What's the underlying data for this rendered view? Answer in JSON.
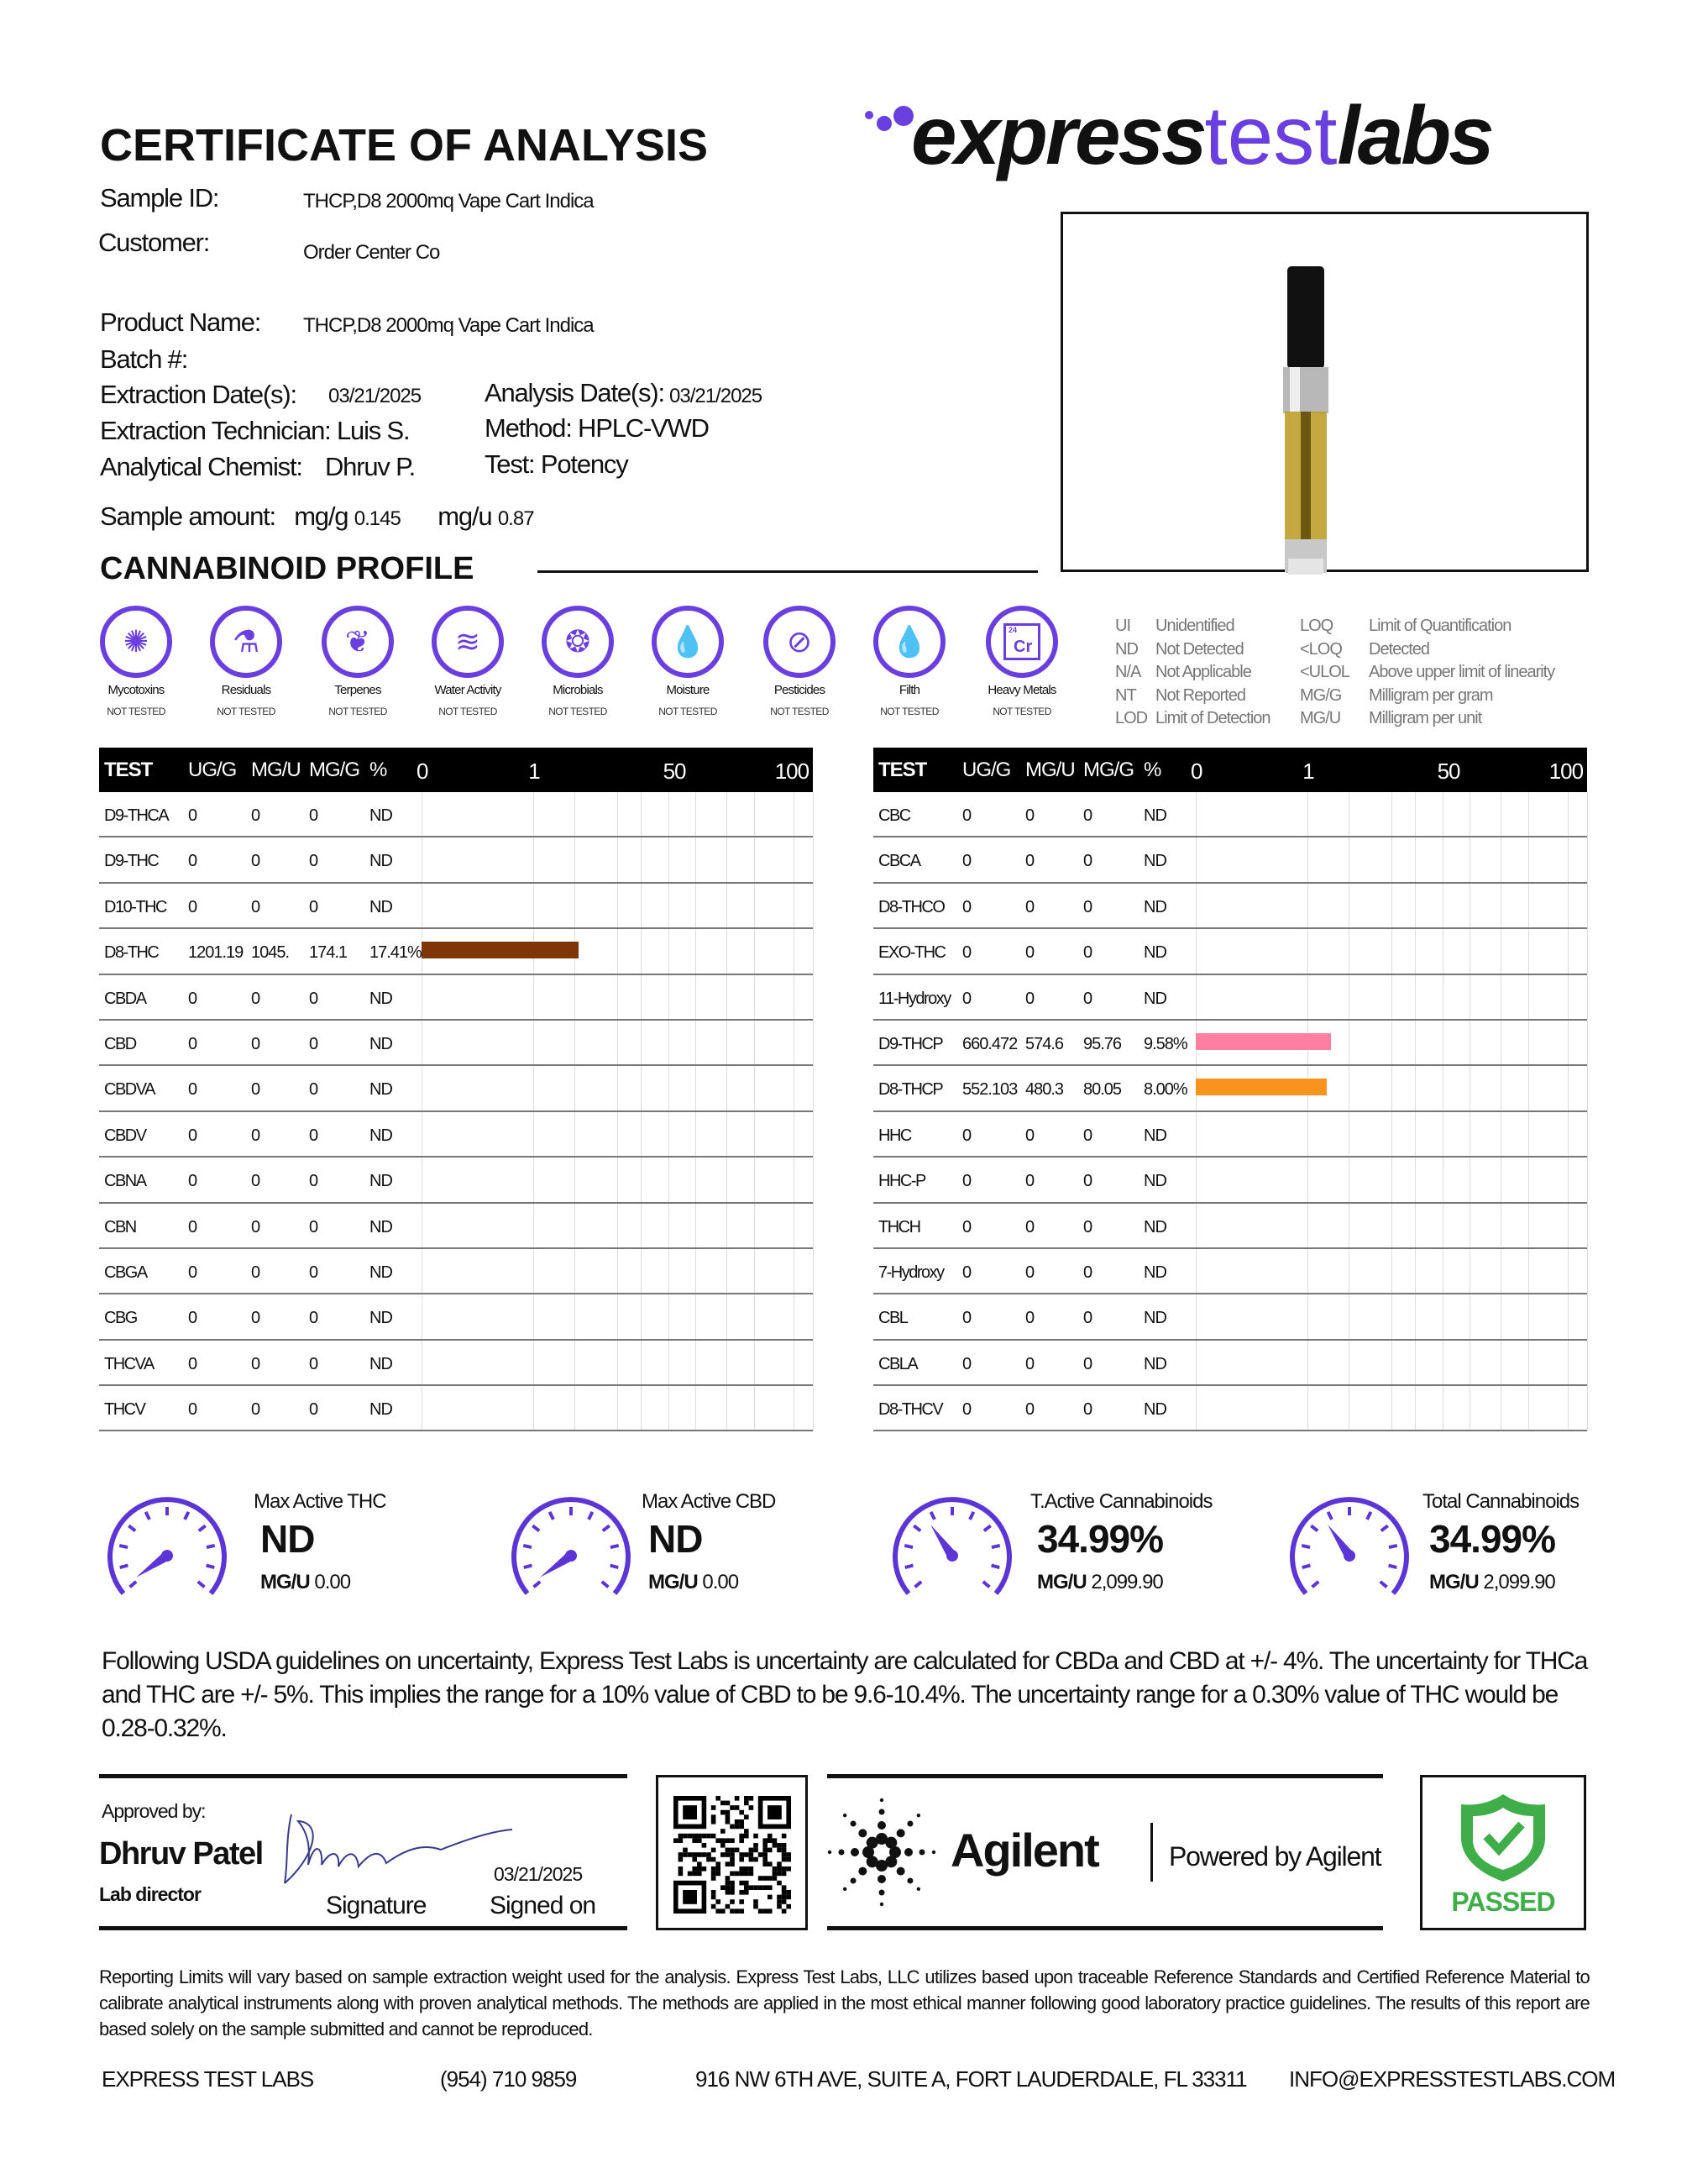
{
  "header": {
    "title": "CERTIFICATE OF ANALYSIS",
    "logo": {
      "part1": "express",
      "part2": "test",
      "part3": "labs"
    },
    "brand_color": "#6a3fe0"
  },
  "info": {
    "sample_id_label": "Sample ID:",
    "sample_id": "THCP,D8 2000mq Vape Cart Indica",
    "customer_label": "Customer:",
    "customer": "Order Center Co",
    "product_name_label": "Product Name:",
    "product_name": "THCP,D8 2000mq Vape Cart Indica",
    "batch_label": "Batch #:",
    "extraction_date_label": "Extraction Date(s):",
    "extraction_date": "03/21/2025",
    "analysis_date_label": "Analysis Date(s):",
    "analysis_date": "03/21/2025",
    "technician_label": "Extraction Technician:",
    "technician": "Luis S.",
    "method_label": "Method:",
    "method": "HPLC-VWD",
    "chemist_label": "Analytical Chemist:",
    "chemist": "Dhruv P.",
    "test_label": "Test:",
    "test": "Potency",
    "sample_amount_label": "Sample amount:",
    "mgg_label": "mg/g",
    "mgg": "0.145",
    "mgu_label": "mg/u",
    "mgu": "0.87"
  },
  "section_title": "CANNABINOID PROFILE",
  "tests": [
    {
      "label": "Mycotoxins",
      "status": "NOT TESTED",
      "icon": "virus-icon"
    },
    {
      "label": "Residuals",
      "status": "NOT TESTED",
      "icon": "flask-icon"
    },
    {
      "label": "Terpenes",
      "status": "NOT TESTED",
      "icon": "leaf-icon"
    },
    {
      "label": "Water Activity",
      "status": "NOT TESTED",
      "icon": "waves-icon"
    },
    {
      "label": "Microbials",
      "status": "NOT TESTED",
      "icon": "petri-dish-icon"
    },
    {
      "label": "Moisture",
      "status": "NOT TESTED",
      "icon": "drops-icon"
    },
    {
      "label": "Pesticides",
      "status": "NOT TESTED",
      "icon": "spray-icon"
    },
    {
      "label": "Filth",
      "status": "NOT TESTED",
      "icon": "droplet-icon"
    },
    {
      "label": "Heavy Metals",
      "status": "NOT TESTED",
      "icon": "chromium-icon",
      "icon_text": "Cr",
      "icon_num": "24"
    }
  ],
  "legend": [
    {
      "abbr": "UI",
      "desc": "Unidentified"
    },
    {
      "abbr": "ND",
      "desc": "Not Detected"
    },
    {
      "abbr": "N/A",
      "desc": "Not Applicable"
    },
    {
      "abbr": "NT",
      "desc": "Not Reported"
    },
    {
      "abbr": "LOD",
      "desc": "Limit of Detection"
    },
    {
      "abbr": "LOQ",
      "desc": "Limit of Quantification"
    },
    {
      "abbr": "<LOQ",
      "desc": "Detected"
    },
    {
      "abbr": "<ULOL",
      "desc": "Above upper limit of linearity"
    },
    {
      "abbr": "MG/G",
      "desc": "Milligram per gram"
    },
    {
      "abbr": "MG/U",
      "desc": "Milligram per unit"
    }
  ],
  "table_headers": [
    "TEST",
    "UG/G",
    "MG/U",
    "MG/G",
    "%"
  ],
  "scale_ticks": [
    "0",
    "1",
    "50",
    "100"
  ],
  "tables": [
    [
      {
        "test": "D9-THCA",
        "ugg": "0",
        "mgu": "0",
        "mgg": "0",
        "pct": "ND"
      },
      {
        "test": "D9-THC",
        "ugg": "0",
        "mgu": "0",
        "mgg": "0",
        "pct": "ND"
      },
      {
        "test": "D10-THC",
        "ugg": "0",
        "mgu": "0",
        "mgg": "0",
        "pct": "ND"
      },
      {
        "test": "D8-THC",
        "ugg": "1201.19",
        "mgu": "1045.",
        "mgg": "174.1",
        "pct": "17.41%",
        "value": 17.41,
        "color": "#7f3606"
      },
      {
        "test": "CBDA",
        "ugg": "0",
        "mgu": "0",
        "mgg": "0",
        "pct": "ND"
      },
      {
        "test": "CBD",
        "ugg": "0",
        "mgu": "0",
        "mgg": "0",
        "pct": "ND"
      },
      {
        "test": "CBDVA",
        "ugg": "0",
        "mgu": "0",
        "mgg": "0",
        "pct": "ND"
      },
      {
        "test": "CBDV",
        "ugg": "0",
        "mgu": "0",
        "mgg": "0",
        "pct": "ND"
      },
      {
        "test": "CBNA",
        "ugg": "0",
        "mgu": "0",
        "mgg": "0",
        "pct": "ND"
      },
      {
        "test": "CBN",
        "ugg": "0",
        "mgu": "0",
        "mgg": "0",
        "pct": "ND"
      },
      {
        "test": "CBGA",
        "ugg": "0",
        "mgu": "0",
        "mgg": "0",
        "pct": "ND"
      },
      {
        "test": "CBG",
        "ugg": "0",
        "mgu": "0",
        "mgg": "0",
        "pct": "ND"
      },
      {
        "test": "THCVA",
        "ugg": "0",
        "mgu": "0",
        "mgg": "0",
        "pct": "ND"
      },
      {
        "test": "THCV",
        "ugg": "0",
        "mgu": "0",
        "mgg": "0",
        "pct": "ND"
      }
    ],
    [
      {
        "test": "CBC",
        "ugg": "0",
        "mgu": "0",
        "mgg": "0",
        "pct": "ND"
      },
      {
        "test": "CBCA",
        "ugg": "0",
        "mgu": "0",
        "mgg": "0",
        "pct": "ND"
      },
      {
        "test": "D8-THCO",
        "ugg": "0",
        "mgu": "0",
        "mgg": "0",
        "pct": "ND"
      },
      {
        "test": "EXO-THC",
        "ugg": "0",
        "mgu": "0",
        "mgg": "0",
        "pct": "ND"
      },
      {
        "test": "11-Hydroxy",
        "ugg": "0",
        "mgu": "0",
        "mgg": "0",
        "pct": "ND"
      },
      {
        "test": "D9-THCP",
        "ugg": "660.472",
        "mgu": "574.6",
        "mgg": "95.76",
        "pct": "9.58%",
        "value": 9.58,
        "color": "#ff7fa0"
      },
      {
        "test": "D8-THCP",
        "ugg": "552.103",
        "mgu": "480.3",
        "mgg": "80.05",
        "pct": "8.00%",
        "value": 8.0,
        "color": "#f7941d"
      },
      {
        "test": "HHC",
        "ugg": "0",
        "mgu": "0",
        "mgg": "0",
        "pct": "ND"
      },
      {
        "test": "HHC-P",
        "ugg": "0",
        "mgu": "0",
        "mgg": "0",
        "pct": "ND"
      },
      {
        "test": "THCH",
        "ugg": "0",
        "mgu": "0",
        "mgg": "0",
        "pct": "ND"
      },
      {
        "test": "7-Hydroxy",
        "ugg": "0",
        "mgu": "0",
        "mgg": "0",
        "pct": "ND"
      },
      {
        "test": "CBL",
        "ugg": "0",
        "mgu": "0",
        "mgg": "0",
        "pct": "ND"
      },
      {
        "test": "CBLA",
        "ugg": "0",
        "mgu": "0",
        "mgg": "0",
        "pct": "ND"
      },
      {
        "test": "D8-THCV",
        "ugg": "0",
        "mgu": "0",
        "mgg": "0",
        "pct": "ND"
      }
    ]
  ],
  "summary": [
    {
      "label": "Max Active THC",
      "value": "ND",
      "mgu_label": "MG/U",
      "mgu": "0.00"
    },
    {
      "label": "Max Active CBD",
      "value": "ND",
      "mgu_label": "MG/U",
      "mgu": "0.00"
    },
    {
      "label": "T.Active Cannabinoids",
      "value": "34.99%",
      "mgu_label": "MG/U",
      "mgu": "2,099.90"
    },
    {
      "label": "Total Cannabinoids",
      "value": "34.99%",
      "mgu_label": "MG/U",
      "mgu": "2,099.90"
    }
  ],
  "uncertainty": "Following USDA guidelines on uncertainty, Express Test Labs is uncertainty are calculated for CBDa and CBD at +/- 4%. The uncertainty for THCa and THC are +/- 5%. This implies the range for a 10% value of CBD to be 9.6-10.4%. The uncertainty range for a 0.30% value of THC would be 0.28-0.32%.",
  "approval": {
    "approved_by_label": "Approved by:",
    "name": "Dhruv Patel",
    "role": "Lab director",
    "signature_label": "Signature",
    "signed_date": "03/21/2025",
    "signed_on_label": "Signed on"
  },
  "agilent": {
    "name": "Agilent",
    "powered": "Powered by Agilent"
  },
  "passed": {
    "label": "PASSED",
    "color": "#3fae49"
  },
  "disclaimer": "Reporting Limits will vary based on sample extraction weight used for the analysis. Express Test Labs, LLC utilizes based upon traceable Reference Standards and Certified Reference Material to calibrate analytical instruments along with proven analytical methods. The methods are applied in the most ethical manner following good laboratory practice guidelines. The results of this report are based solely on the sample submitted and cannot be reproduced.",
  "footer": {
    "company": "EXPRESS TEST LABS",
    "phone": "(954) 710 9859",
    "address": "916 NW 6TH AVE, SUITE A, FORT LAUDERDALE, FL 33311",
    "email": "INFO@EXPRESSTESTLABS.COM"
  }
}
